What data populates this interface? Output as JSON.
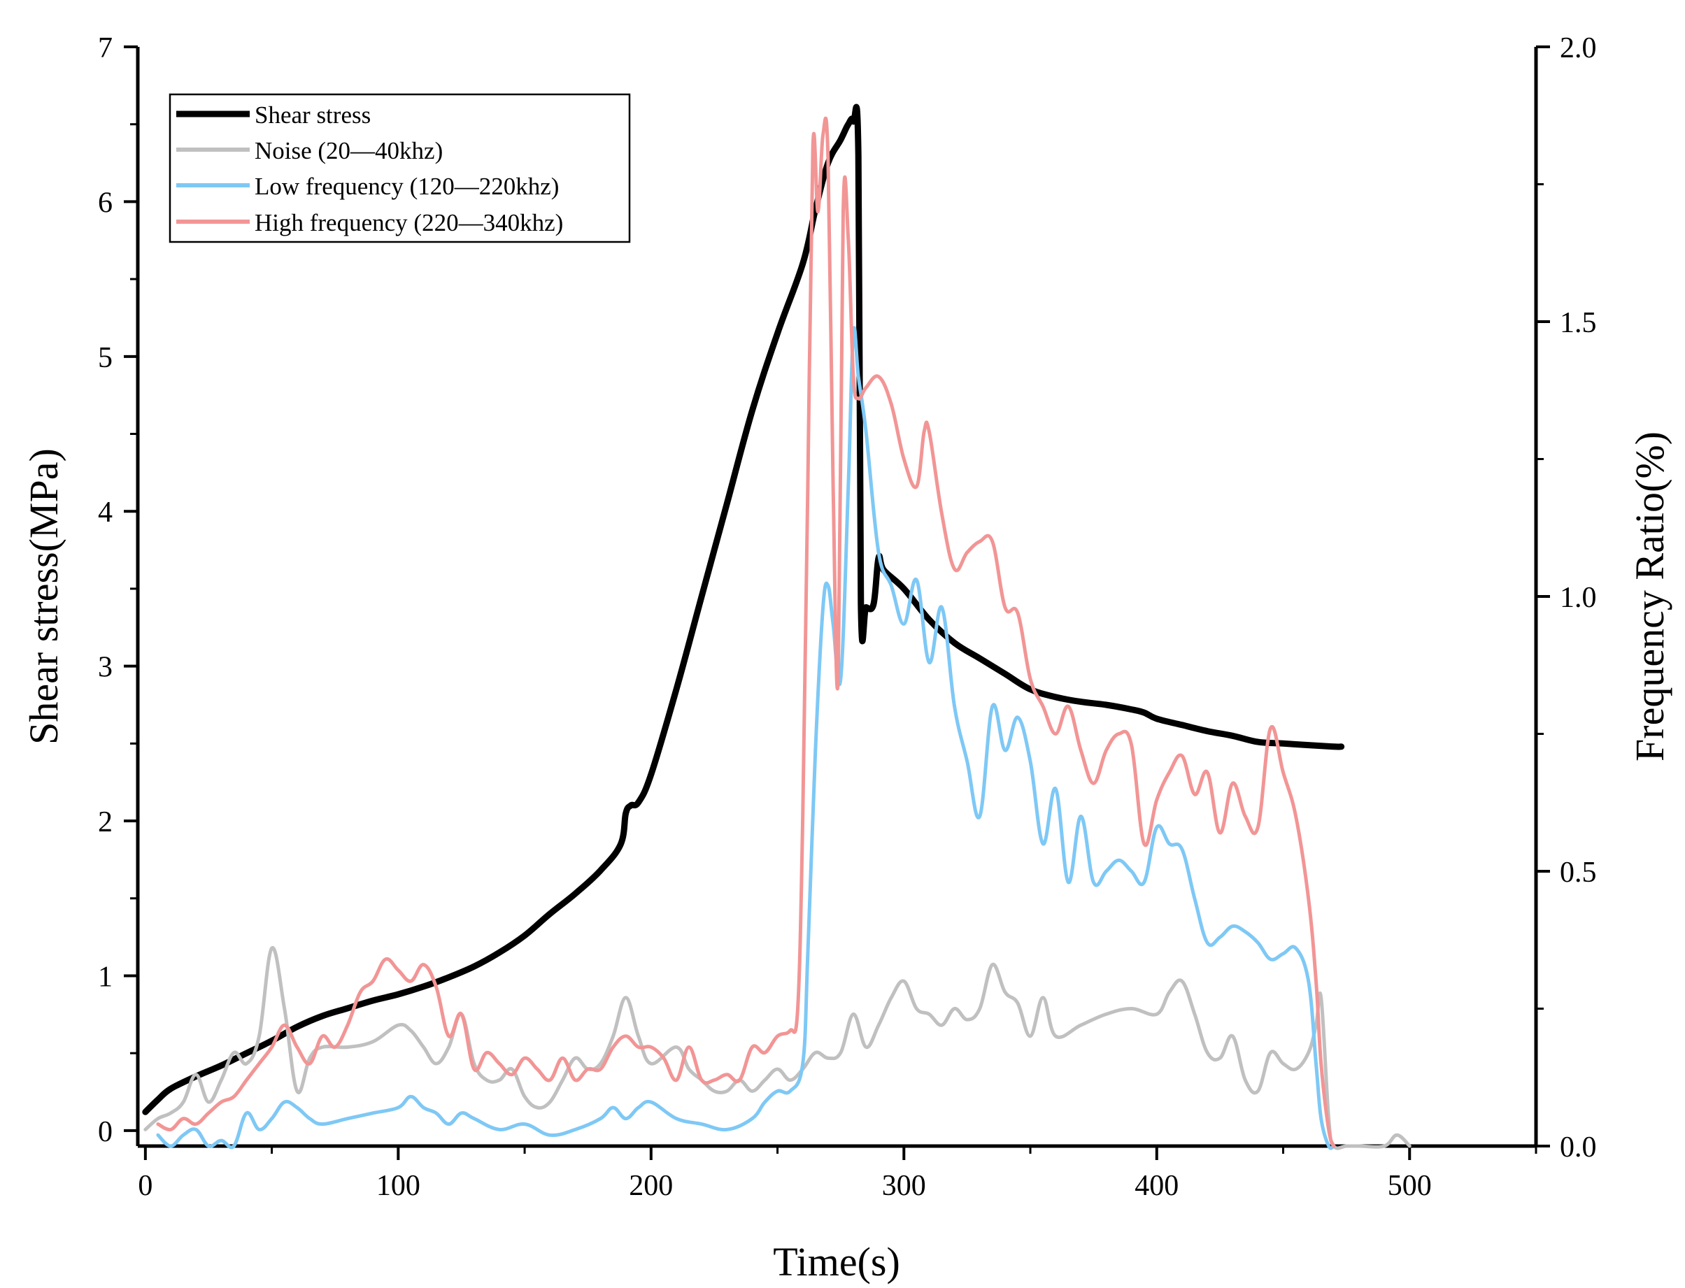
{
  "chart_data": {
    "type": "line",
    "title": "",
    "xlabel": "Time(s)",
    "ylabel": "Shear stress(MPa)",
    "y2label": "Frequency Ratio(%)",
    "xlim": [
      -3,
      550
    ],
    "ylim": [
      -0.1,
      7
    ],
    "y2lim": [
      0,
      2.0
    ],
    "x_ticks": [
      0,
      100,
      200,
      300,
      400,
      500
    ],
    "y_ticks": [
      0,
      1,
      2,
      3,
      4,
      5,
      6,
      7
    ],
    "y2_ticks": [
      0.0,
      0.5,
      1.0,
      1.5,
      2.0
    ],
    "y2_tick_labels": [
      "0.0",
      "0.5",
      "1.0",
      "1.5",
      "2.0"
    ],
    "legend_position": "top-left",
    "grid": false,
    "series": [
      {
        "name": "Shear stress",
        "axis": "left",
        "color": "#000000",
        "x": [
          0,
          5,
          10,
          20,
          30,
          40,
          50,
          60,
          70,
          80,
          90,
          100,
          110,
          120,
          130,
          140,
          150,
          160,
          170,
          180,
          188,
          190,
          192,
          195,
          200,
          210,
          220,
          230,
          240,
          250,
          260,
          265,
          270,
          275,
          278,
          280,
          282,
          283,
          285,
          288,
          290,
          292,
          300,
          310,
          320,
          330,
          340,
          350,
          360,
          370,
          380,
          390,
          395,
          400,
          410,
          420,
          430,
          440,
          450,
          460,
          470,
          473
        ],
        "y": [
          0.12,
          0.2,
          0.27,
          0.35,
          0.42,
          0.5,
          0.58,
          0.67,
          0.74,
          0.79,
          0.84,
          0.88,
          0.93,
          0.99,
          1.06,
          1.15,
          1.26,
          1.4,
          1.53,
          1.68,
          1.85,
          2.05,
          2.1,
          2.12,
          2.3,
          2.85,
          3.45,
          4.05,
          4.65,
          5.15,
          5.6,
          5.95,
          6.25,
          6.4,
          6.5,
          6.52,
          6.3,
          3.4,
          3.38,
          3.4,
          3.7,
          3.62,
          3.5,
          3.3,
          3.15,
          3.05,
          2.95,
          2.85,
          2.8,
          2.77,
          2.75,
          2.72,
          2.7,
          2.66,
          2.62,
          2.58,
          2.55,
          2.51,
          2.5,
          2.49,
          2.48,
          2.48
        ]
      },
      {
        "name": "Noise (20—40khz)",
        "axis": "right",
        "color": "#c0c0c0",
        "x": [
          0,
          5,
          10,
          15,
          20,
          25,
          30,
          35,
          40,
          45,
          50,
          55,
          60,
          65,
          70,
          80,
          90,
          100,
          105,
          110,
          115,
          120,
          125,
          130,
          135,
          140,
          145,
          150,
          155,
          160,
          165,
          170,
          175,
          180,
          185,
          190,
          195,
          200,
          210,
          215,
          220,
          225,
          230,
          235,
          240,
          245,
          250,
          255,
          260,
          265,
          270,
          275,
          280,
          285,
          290,
          295,
          300,
          305,
          310,
          315,
          320,
          325,
          330,
          335,
          340,
          345,
          350,
          355,
          360,
          370,
          380,
          390,
          400,
          405,
          410,
          415,
          420,
          425,
          430,
          435,
          440,
          445,
          450,
          455,
          460,
          463,
          465,
          468,
          470,
          475,
          480,
          490,
          495,
          500
        ],
        "y": [
          0.03,
          0.05,
          0.06,
          0.08,
          0.13,
          0.08,
          0.12,
          0.17,
          0.15,
          0.2,
          0.36,
          0.25,
          0.1,
          0.16,
          0.18,
          0.18,
          0.19,
          0.22,
          0.21,
          0.18,
          0.15,
          0.18,
          0.24,
          0.15,
          0.12,
          0.12,
          0.14,
          0.09,
          0.07,
          0.08,
          0.12,
          0.16,
          0.14,
          0.15,
          0.2,
          0.27,
          0.2,
          0.15,
          0.18,
          0.14,
          0.12,
          0.1,
          0.1,
          0.12,
          0.1,
          0.12,
          0.14,
          0.12,
          0.14,
          0.17,
          0.16,
          0.17,
          0.24,
          0.18,
          0.22,
          0.27,
          0.3,
          0.25,
          0.24,
          0.22,
          0.25,
          0.23,
          0.25,
          0.33,
          0.28,
          0.26,
          0.2,
          0.27,
          0.2,
          0.22,
          0.24,
          0.25,
          0.24,
          0.28,
          0.3,
          0.24,
          0.17,
          0.16,
          0.2,
          0.12,
          0.1,
          0.17,
          0.15,
          0.14,
          0.17,
          0.22,
          0.27,
          0.05,
          0.0,
          0.0,
          0.0,
          0.0,
          0.02,
          0.0
        ]
      },
      {
        "name": "Low frequency (120—220khz)",
        "axis": "right",
        "color": "#7ec8f5",
        "x": [
          5,
          10,
          15,
          20,
          25,
          30,
          35,
          40,
          45,
          50,
          55,
          60,
          65,
          70,
          80,
          90,
          100,
          105,
          110,
          115,
          120,
          125,
          130,
          140,
          150,
          160,
          170,
          180,
          185,
          190,
          195,
          200,
          210,
          220,
          230,
          240,
          245,
          250,
          255,
          260,
          262,
          265,
          268,
          270,
          272,
          275,
          278,
          280,
          282,
          285,
          290,
          295,
          300,
          305,
          310,
          315,
          320,
          325,
          330,
          335,
          340,
          345,
          350,
          355,
          360,
          365,
          370,
          375,
          380,
          385,
          390,
          395,
          400,
          405,
          410,
          415,
          420,
          425,
          430,
          435,
          440,
          445,
          450,
          455,
          460,
          463,
          465,
          468,
          470
        ],
        "y": [
          0.02,
          0.0,
          0.02,
          0.03,
          0.0,
          0.01,
          0.0,
          0.06,
          0.03,
          0.05,
          0.08,
          0.07,
          0.05,
          0.04,
          0.05,
          0.06,
          0.07,
          0.09,
          0.07,
          0.06,
          0.04,
          0.06,
          0.05,
          0.03,
          0.04,
          0.02,
          0.03,
          0.05,
          0.07,
          0.05,
          0.07,
          0.08,
          0.05,
          0.04,
          0.03,
          0.05,
          0.08,
          0.1,
          0.1,
          0.15,
          0.35,
          0.72,
          0.98,
          1.02,
          0.95,
          0.85,
          1.2,
          1.48,
          1.4,
          1.3,
          1.08,
          1.02,
          0.95,
          1.03,
          0.88,
          0.98,
          0.8,
          0.7,
          0.6,
          0.8,
          0.72,
          0.78,
          0.7,
          0.55,
          0.65,
          0.48,
          0.6,
          0.48,
          0.5,
          0.52,
          0.5,
          0.48,
          0.58,
          0.55,
          0.54,
          0.45,
          0.37,
          0.38,
          0.4,
          0.39,
          0.37,
          0.34,
          0.35,
          0.36,
          0.3,
          0.15,
          0.05,
          0.0,
          0.0
        ]
      },
      {
        "name": "High frequency (220—340khz)",
        "axis": "right",
        "color": "#f29595",
        "x": [
          5,
          10,
          15,
          20,
          25,
          30,
          35,
          40,
          45,
          50,
          55,
          60,
          65,
          70,
          75,
          80,
          85,
          90,
          95,
          100,
          105,
          110,
          115,
          120,
          125,
          130,
          135,
          140,
          145,
          150,
          155,
          160,
          165,
          170,
          175,
          180,
          185,
          190,
          195,
          200,
          205,
          210,
          215,
          220,
          225,
          230,
          235,
          240,
          245,
          250,
          255,
          258,
          260,
          262,
          264,
          266,
          268,
          270,
          272,
          274,
          276,
          278,
          280,
          282,
          285,
          290,
          295,
          300,
          305,
          308,
          310,
          315,
          320,
          325,
          330,
          335,
          340,
          345,
          350,
          355,
          360,
          365,
          370,
          375,
          380,
          385,
          390,
          395,
          400,
          405,
          410,
          415,
          420,
          425,
          430,
          435,
          440,
          445,
          450,
          455,
          460,
          463,
          465,
          468,
          470
        ],
        "y": [
          0.04,
          0.03,
          0.05,
          0.04,
          0.06,
          0.08,
          0.09,
          0.12,
          0.15,
          0.18,
          0.22,
          0.18,
          0.15,
          0.2,
          0.18,
          0.22,
          0.28,
          0.3,
          0.34,
          0.32,
          0.3,
          0.33,
          0.29,
          0.2,
          0.24,
          0.14,
          0.17,
          0.15,
          0.13,
          0.16,
          0.14,
          0.12,
          0.16,
          0.12,
          0.14,
          0.14,
          0.18,
          0.2,
          0.18,
          0.18,
          0.16,
          0.12,
          0.18,
          0.12,
          0.12,
          0.13,
          0.12,
          0.18,
          0.17,
          0.2,
          0.21,
          0.25,
          0.6,
          1.2,
          1.82,
          1.7,
          1.84,
          1.8,
          1.2,
          0.85,
          1.7,
          1.65,
          1.4,
          1.36,
          1.38,
          1.4,
          1.35,
          1.25,
          1.2,
          1.3,
          1.3,
          1.15,
          1.05,
          1.08,
          1.1,
          1.1,
          0.98,
          0.97,
          0.85,
          0.8,
          0.75,
          0.8,
          0.72,
          0.66,
          0.72,
          0.75,
          0.73,
          0.55,
          0.63,
          0.68,
          0.71,
          0.64,
          0.68,
          0.57,
          0.66,
          0.6,
          0.58,
          0.76,
          0.68,
          0.6,
          0.45,
          0.3,
          0.15,
          0.03,
          0.0
        ]
      }
    ]
  }
}
